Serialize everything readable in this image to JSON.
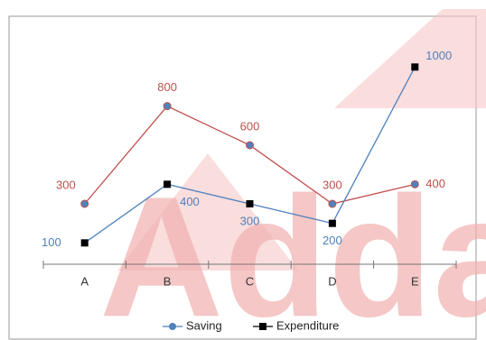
{
  "chart_data": {
    "type": "line",
    "categories": [
      "A",
      "B",
      "C",
      "D",
      "E"
    ],
    "series": [
      {
        "name": "Saving",
        "color": "#c0504d",
        "marker_color": "#4f81bd",
        "legend_color": "#4f81bd",
        "marker": "circle",
        "values": [
          300,
          800,
          600,
          300,
          400
        ]
      },
      {
        "name": "Expenditure",
        "color": "#4f81bd",
        "marker_color": "#000000",
        "legend_color": "#000000",
        "marker": "square",
        "values": [
          100,
          400,
          300,
          200,
          1000
        ]
      }
    ],
    "ylim": [
      0,
      1200
    ],
    "watermark": "Adda",
    "legend": "bottom"
  }
}
